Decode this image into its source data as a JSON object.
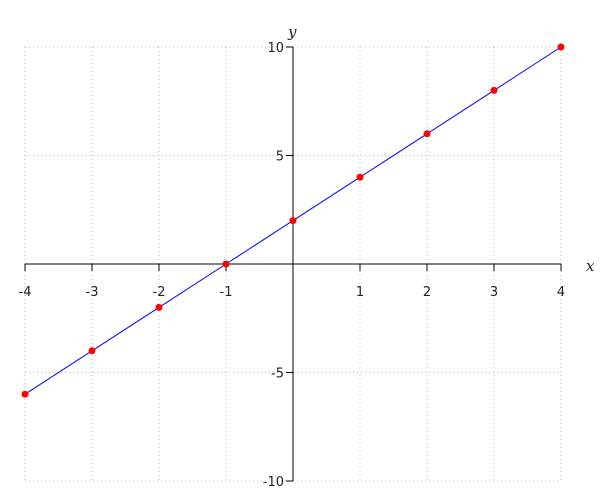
{
  "chart_data": {
    "type": "line",
    "title": "",
    "xlabel": "x",
    "ylabel": "y",
    "xlim": [
      -4,
      4
    ],
    "ylim": [
      -10,
      10
    ],
    "grid": true,
    "x_ticks": [
      -4,
      -3,
      -2,
      -1,
      1,
      2,
      3,
      4
    ],
    "y_ticks": [
      -10,
      -5,
      5,
      10
    ],
    "x_tick_labels": [
      "-4",
      "-3",
      "-2",
      "-1",
      "1",
      "2",
      "3",
      "4"
    ],
    "y_tick_labels": [
      "-10",
      "-5",
      "5",
      "10"
    ],
    "series": [
      {
        "x": [
          -4,
          -3,
          -2,
          -1,
          0,
          1,
          2,
          3,
          4
        ],
        "y": [
          -6,
          -4,
          -2,
          0,
          2,
          4,
          6,
          8,
          10
        ],
        "line_color": "#0000ff",
        "marker_color": "#ff0000"
      }
    ]
  }
}
